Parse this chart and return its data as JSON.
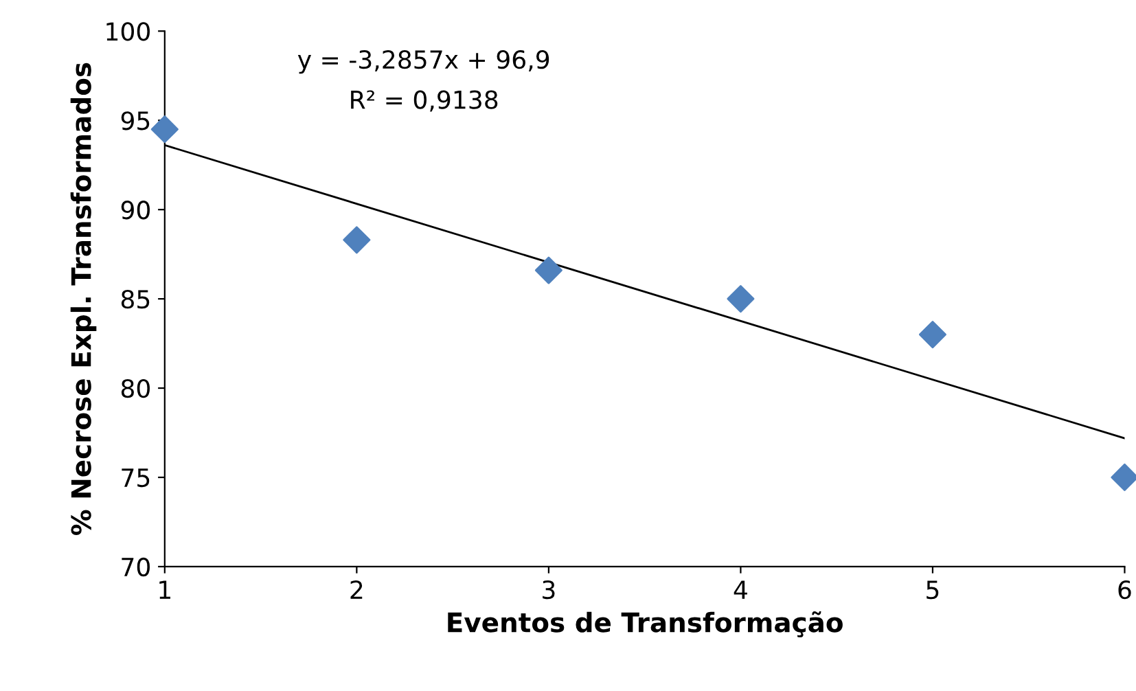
{
  "chart_data": {
    "type": "scatter",
    "xlabel": "Eventos de Transformação",
    "ylabel": "% Necrose Expl. Transformados",
    "x": [
      1,
      2,
      3,
      4,
      5,
      6
    ],
    "series": [
      {
        "color": "#4f81bd",
        "values": [
          94.5,
          88.3,
          86.6,
          85.0,
          83.0,
          75.0
        ],
        "marker": "diamond"
      },
      {
        "type": "line",
        "color": "#000000",
        "x": [
          1,
          6
        ],
        "values": [
          93.61,
          77.19
        ],
        "marker": "none",
        "line_style": "solid"
      }
    ],
    "xlim": [
      1,
      6
    ],
    "xticks": [
      1,
      2,
      3,
      4,
      5,
      6
    ],
    "ylim": [
      70,
      100
    ],
    "yticks": [
      70,
      75,
      80,
      85,
      90,
      95,
      100
    ],
    "grid": false,
    "legend": false,
    "annotations": [
      "y = -3,2857x + 96,9",
      "R² = 0,9138"
    ]
  }
}
